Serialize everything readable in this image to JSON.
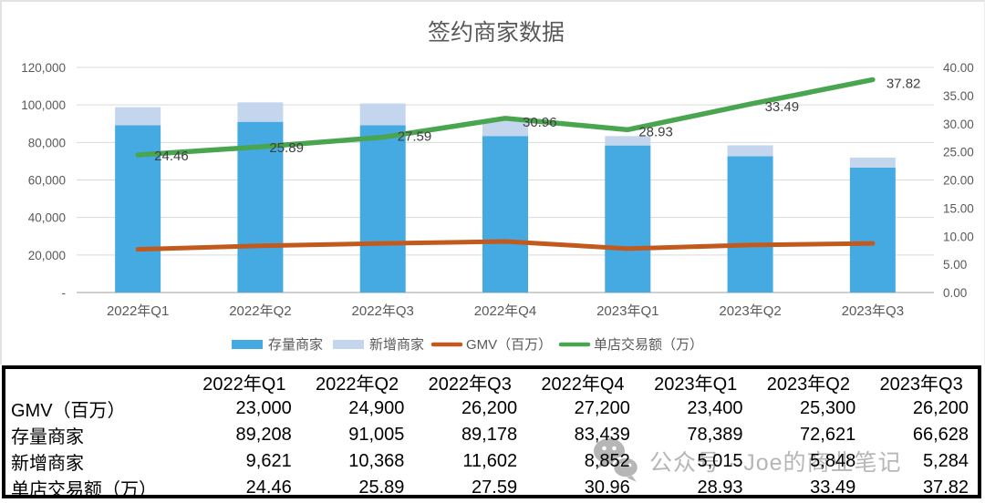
{
  "chart_data": {
    "type": "combo",
    "title": "签约商家数据",
    "categories": [
      "2022年Q1",
      "2022年Q2",
      "2022年Q3",
      "2022年Q4",
      "2023年Q1",
      "2023年Q2",
      "2023年Q3"
    ],
    "series": [
      {
        "name": "存量商家",
        "chart": "stacked-bar",
        "axis": "left",
        "color": "#45a9e2",
        "values": [
          89208,
          91005,
          89178,
          83439,
          78389,
          72621,
          66628
        ]
      },
      {
        "name": "新增商家",
        "chart": "stacked-bar",
        "axis": "left",
        "color": "#c3d6ee",
        "values": [
          9621,
          10368,
          11602,
          8852,
          5015,
          5848,
          5284
        ]
      },
      {
        "name": "GMV（百万）",
        "chart": "line",
        "axis": "left",
        "color": "#c2591d",
        "values": [
          23000,
          24900,
          26200,
          27200,
          23400,
          25300,
          26200
        ]
      },
      {
        "name": "单店交易额（万）",
        "chart": "line",
        "axis": "right",
        "color": "#4aa551",
        "values": [
          24.46,
          25.89,
          27.59,
          30.96,
          28.93,
          33.49,
          37.82
        ],
        "data_labels": [
          "24.46",
          "25.89",
          "27.59",
          "30.96",
          "28.93",
          "33.49",
          "37.82"
        ]
      }
    ],
    "left_axis": {
      "min": 0,
      "max": 120000,
      "step": 20000,
      "tick_labels": [
        "-",
        "20,000",
        "40,000",
        "60,000",
        "80,000",
        "100,000",
        "120,000"
      ]
    },
    "right_axis": {
      "min": 0,
      "max": 40,
      "step": 5,
      "tick_labels": [
        "0.00",
        "5.00",
        "10.00",
        "15.00",
        "20.00",
        "25.00",
        "30.00",
        "35.00",
        "40.00"
      ]
    },
    "grid": true,
    "legend_position": "bottom"
  },
  "table": {
    "header": [
      "",
      "2022年Q1",
      "2022年Q2",
      "2022年Q3",
      "2022年Q4",
      "2023年Q1",
      "2023年Q2",
      "2023年Q3"
    ],
    "rows": [
      {
        "label": "GMV（百万）",
        "values": [
          "23,000",
          "24,900",
          "26,200",
          "27,200",
          "23,400",
          "25,300",
          "26,200"
        ]
      },
      {
        "label": "存量商家",
        "values": [
          "89,208",
          "91,005",
          "89,178",
          "83,439",
          "78,389",
          "72,621",
          "66,628"
        ]
      },
      {
        "label": "新增商家",
        "values": [
          "9,621",
          "10,368",
          "11,602",
          "8,852",
          "5,015",
          "5,848",
          "5,284"
        ]
      },
      {
        "label": "单店交易额（万）",
        "values": [
          "24.46",
          "25.89",
          "27.59",
          "30.96",
          "28.93",
          "33.49",
          "37.82"
        ]
      }
    ]
  },
  "watermark": {
    "text": "公众号 · Joe的商业笔记",
    "icon": "wechat-icon"
  }
}
